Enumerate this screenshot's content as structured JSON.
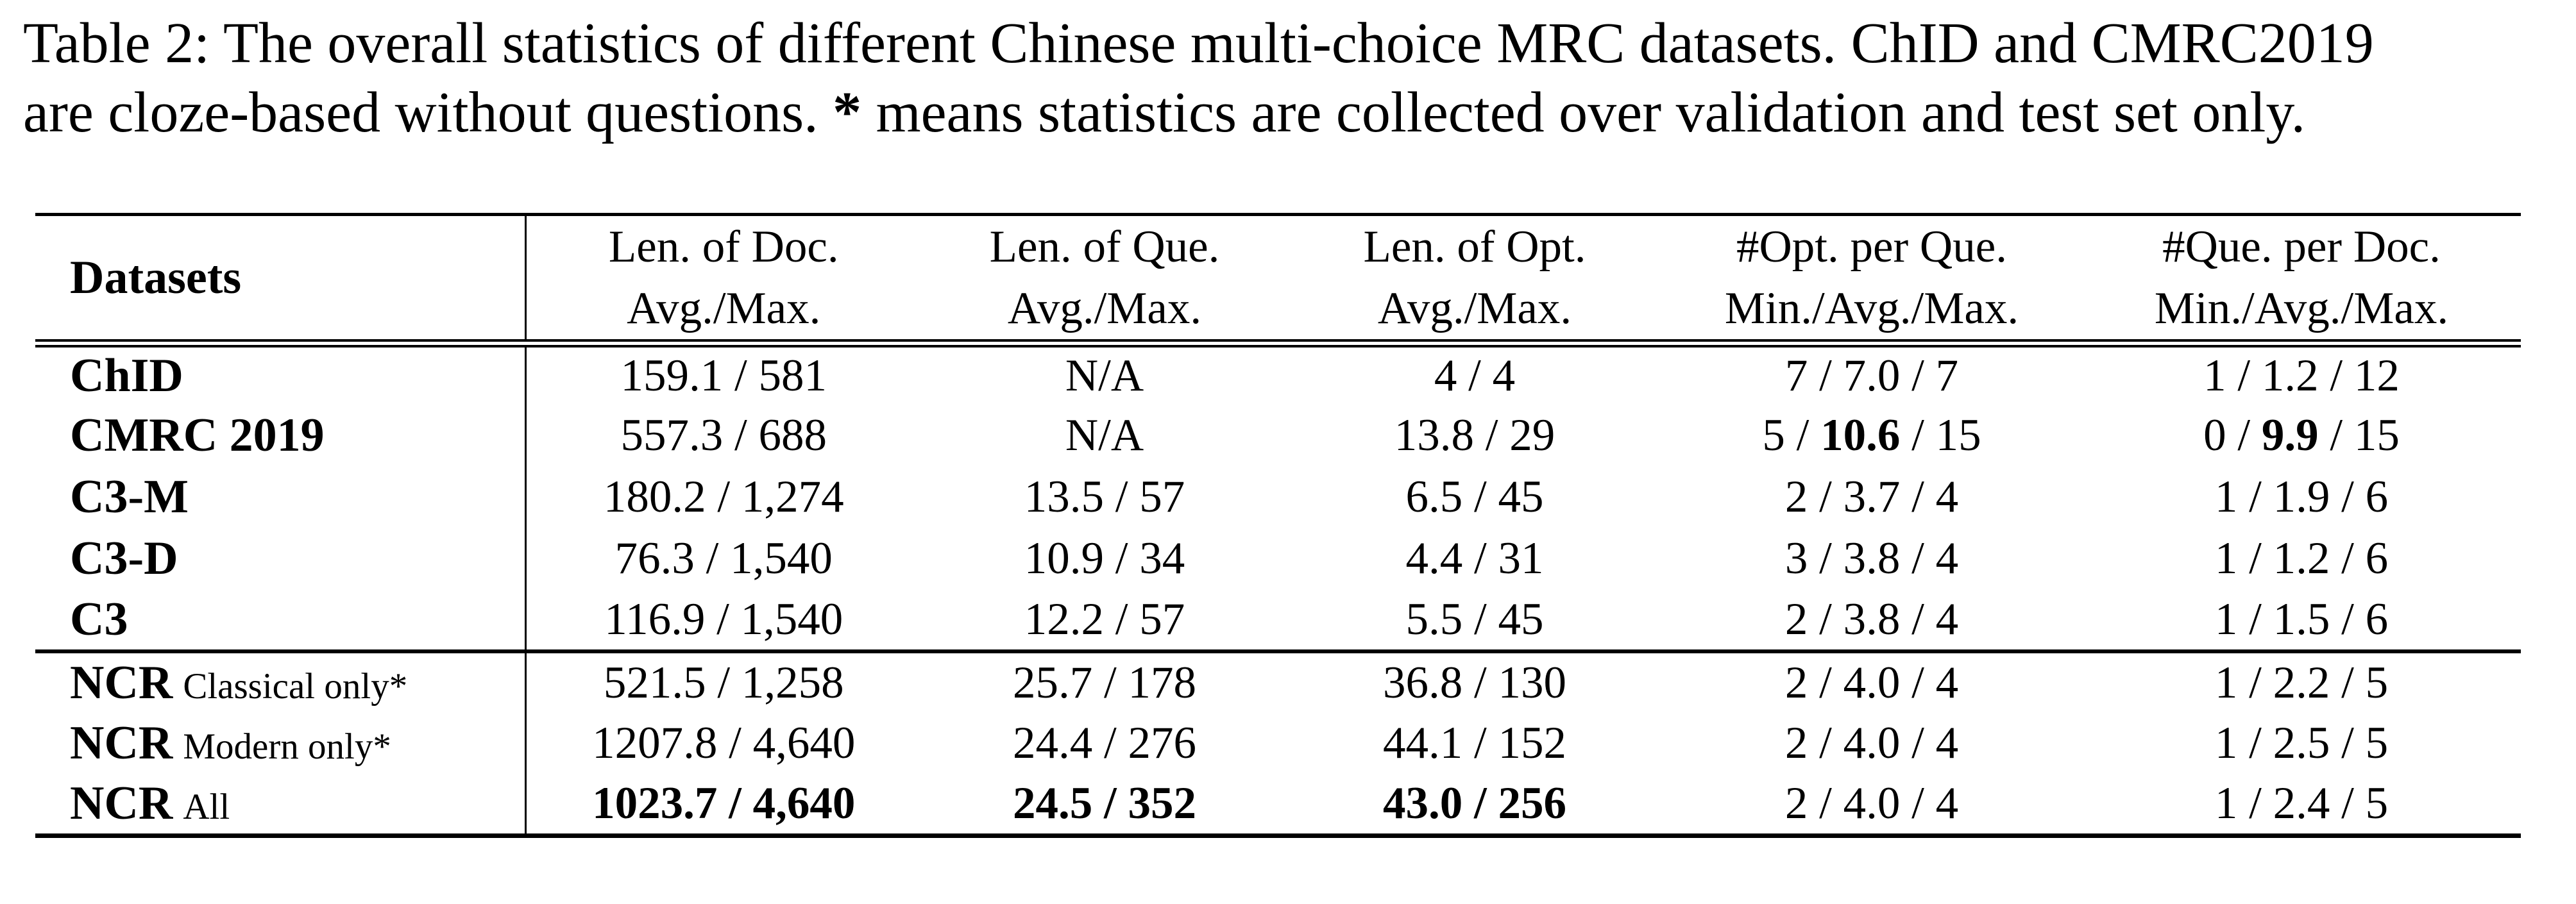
{
  "caption": {
    "line1": "Table 2: The overall statistics of different Chinese multi-choice MRC datasets. ChID and CMRC2019",
    "line2_pre": "are cloze-based without questions. ",
    "line2_star": "*",
    "line2_post": " means statistics are collected over validation and test set only."
  },
  "table": {
    "header": {
      "datasets_label": "Datasets",
      "columns": [
        {
          "line1": "Len. of Doc.",
          "line2": "Avg./Max."
        },
        {
          "line1": "Len. of Que.",
          "line2": "Avg./Max."
        },
        {
          "line1": "Len. of Opt.",
          "line2": "Avg./Max."
        },
        {
          "line1": "#Opt. per Que.",
          "line2": "Min./Avg./Max."
        },
        {
          "line1": "#Que. per Doc.",
          "line2": "Min./Avg./Max."
        }
      ]
    },
    "groups": [
      {
        "rows": [
          {
            "label": "ChID",
            "suffix": "",
            "cells": [
              [
                {
                  "t": "159.1 / 581"
                }
              ],
              [
                {
                  "t": "N/A"
                }
              ],
              [
                {
                  "t": "4 / 4"
                }
              ],
              [
                {
                  "t": "7 / 7.0 / 7"
                }
              ],
              [
                {
                  "t": "1 / 1.2 / 12"
                }
              ]
            ]
          },
          {
            "label": "CMRC 2019",
            "suffix": "",
            "cells": [
              [
                {
                  "t": "557.3 / 688"
                }
              ],
              [
                {
                  "t": "N/A"
                }
              ],
              [
                {
                  "t": "13.8 / 29"
                }
              ],
              [
                {
                  "t": "5 / "
                },
                {
                  "t": "10.6",
                  "b": true
                },
                {
                  "t": " / 15"
                }
              ],
              [
                {
                  "t": "0 / "
                },
                {
                  "t": "9.9",
                  "b": true
                },
                {
                  "t": " / 15"
                }
              ]
            ]
          },
          {
            "label": "C3-M",
            "suffix": "",
            "cells": [
              [
                {
                  "t": "180.2 / 1,274"
                }
              ],
              [
                {
                  "t": "13.5 / 57"
                }
              ],
              [
                {
                  "t": "6.5 / 45"
                }
              ],
              [
                {
                  "t": "2 / 3.7 / 4"
                }
              ],
              [
                {
                  "t": "1 / 1.9 / 6"
                }
              ]
            ]
          },
          {
            "label": "C3-D",
            "suffix": "",
            "cells": [
              [
                {
                  "t": "76.3 / 1,540"
                }
              ],
              [
                {
                  "t": "10.9 / 34"
                }
              ],
              [
                {
                  "t": "4.4 / 31"
                }
              ],
              [
                {
                  "t": "3 / 3.8 / 4"
                }
              ],
              [
                {
                  "t": "1 / 1.2 / 6"
                }
              ]
            ]
          },
          {
            "label": "C3",
            "suffix": "",
            "cells": [
              [
                {
                  "t": "116.9 / 1,540"
                }
              ],
              [
                {
                  "t": "12.2 / 57"
                }
              ],
              [
                {
                  "t": "5.5 / 45"
                }
              ],
              [
                {
                  "t": "2 / 3.8 / 4"
                }
              ],
              [
                {
                  "t": "1 / 1.5 / 6"
                }
              ]
            ]
          }
        ]
      },
      {
        "rows": [
          {
            "label": "NCR",
            "suffix": "Classical only*",
            "cells": [
              [
                {
                  "t": "521.5 / 1,258"
                }
              ],
              [
                {
                  "t": "25.7 / 178"
                }
              ],
              [
                {
                  "t": "36.8 / 130"
                }
              ],
              [
                {
                  "t": "2 / 4.0 / 4"
                }
              ],
              [
                {
                  "t": "1 / 2.2 / 5"
                }
              ]
            ]
          },
          {
            "label": "NCR",
            "suffix": "Modern only*",
            "cells": [
              [
                {
                  "t": "1207.8 / 4,640"
                }
              ],
              [
                {
                  "t": "24.4 / 276"
                }
              ],
              [
                {
                  "t": "44.1 / 152"
                }
              ],
              [
                {
                  "t": "2 / 4.0 / 4"
                }
              ],
              [
                {
                  "t": "1 / 2.5 / 5"
                }
              ]
            ]
          },
          {
            "label": "NCR",
            "suffix": "All",
            "cells": [
              [
                {
                  "t": "1023.7 / 4,640",
                  "b": true
                }
              ],
              [
                {
                  "t": "24.5 / 352",
                  "b": true
                }
              ],
              [
                {
                  "t": "43.0 / 256",
                  "b": true
                }
              ],
              [
                {
                  "t": "2 / 4.0 / 4"
                }
              ],
              [
                {
                  "t": "1 / 2.4 / 5"
                }
              ]
            ]
          }
        ]
      }
    ]
  },
  "colors": {
    "text": "#000000",
    "background": "#ffffff",
    "rule": "#000000"
  }
}
